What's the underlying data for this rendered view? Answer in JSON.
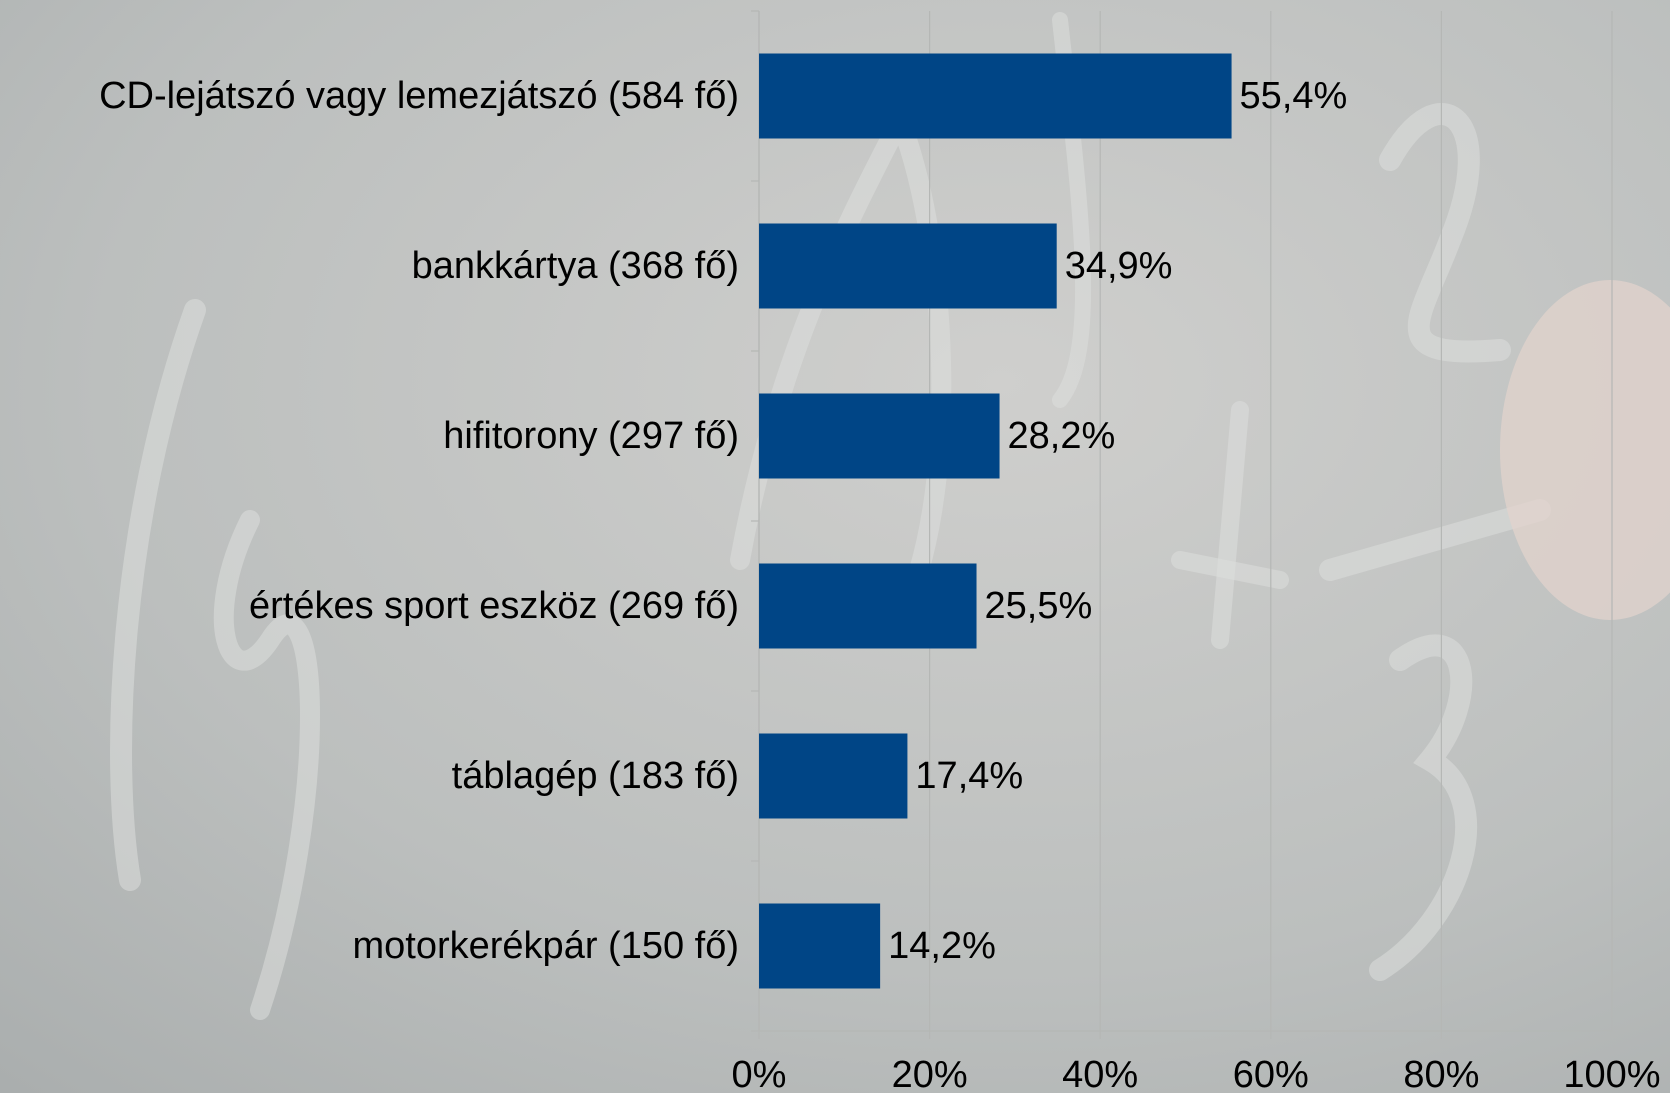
{
  "chart_data": {
    "type": "bar",
    "orientation": "horizontal",
    "categories": [
      "CD-lejátszó vagy lemezjátszó (584 fő)",
      "bankkártya (368 fő)",
      "hifitorony (297 fő)",
      "értékes sport eszköz (269 fő)",
      "táblagép (183 fő)",
      "motorkerékpár (150 fő)"
    ],
    "values": [
      55.4,
      34.9,
      28.2,
      25.5,
      17.4,
      14.2
    ],
    "value_labels": [
      "55,4%",
      "34,9%",
      "28,2%",
      "25,5%",
      "17,4%",
      "14,2%"
    ],
    "color": "#004586",
    "xlim": [
      0,
      100
    ],
    "xticks": [
      {
        "value": 0,
        "label": "0%"
      },
      {
        "value": 20,
        "label": "20%"
      },
      {
        "value": 40,
        "label": "40%"
      },
      {
        "value": 60,
        "label": "60%"
      },
      {
        "value": 80,
        "label": "80%"
      },
      {
        "value": 100,
        "label": "100%"
      }
    ],
    "grid": true
  }
}
